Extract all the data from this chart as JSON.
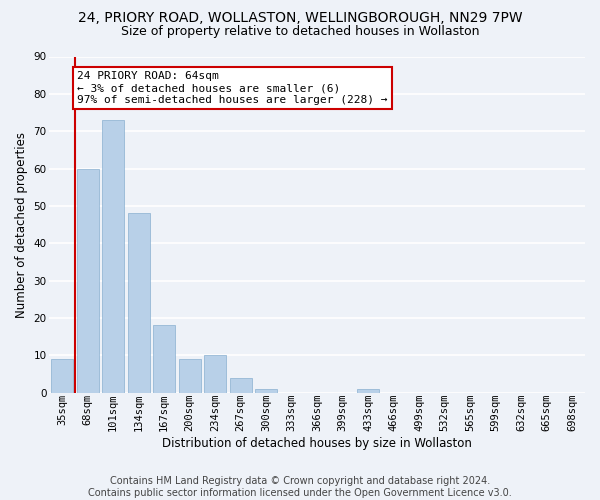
{
  "title1": "24, PRIORY ROAD, WOLLASTON, WELLINGBOROUGH, NN29 7PW",
  "title2": "Size of property relative to detached houses in Wollaston",
  "xlabel": "Distribution of detached houses by size in Wollaston",
  "ylabel": "Number of detached properties",
  "categories": [
    "35sqm",
    "68sqm",
    "101sqm",
    "134sqm",
    "167sqm",
    "200sqm",
    "234sqm",
    "267sqm",
    "300sqm",
    "333sqm",
    "366sqm",
    "399sqm",
    "433sqm",
    "466sqm",
    "499sqm",
    "532sqm",
    "565sqm",
    "599sqm",
    "632sqm",
    "665sqm",
    "698sqm"
  ],
  "values": [
    9,
    60,
    73,
    48,
    18,
    9,
    10,
    4,
    1,
    0,
    0,
    0,
    1,
    0,
    0,
    0,
    0,
    0,
    0,
    0,
    0
  ],
  "bar_color": "#b8d0e8",
  "bar_edge_color": "#8ab0d0",
  "vline_color": "#cc0000",
  "vline_x_index": 0,
  "annotation_text": "24 PRIORY ROAD: 64sqm\n← 3% of detached houses are smaller (6)\n97% of semi-detached houses are larger (228) →",
  "annotation_box_color": "#ffffff",
  "annotation_border_color": "#cc0000",
  "ylim": [
    0,
    90
  ],
  "yticks": [
    0,
    10,
    20,
    30,
    40,
    50,
    60,
    70,
    80,
    90
  ],
  "footer": "Contains HM Land Registry data © Crown copyright and database right 2024.\nContains public sector information licensed under the Open Government Licence v3.0.",
  "bg_color": "#eef2f8",
  "plot_bg_color": "#eef2f8",
  "grid_color": "#ffffff",
  "title1_fontsize": 10,
  "title2_fontsize": 9,
  "xlabel_fontsize": 8.5,
  "ylabel_fontsize": 8.5,
  "tick_fontsize": 7.5,
  "footer_fontsize": 7,
  "ann_fontsize": 8
}
